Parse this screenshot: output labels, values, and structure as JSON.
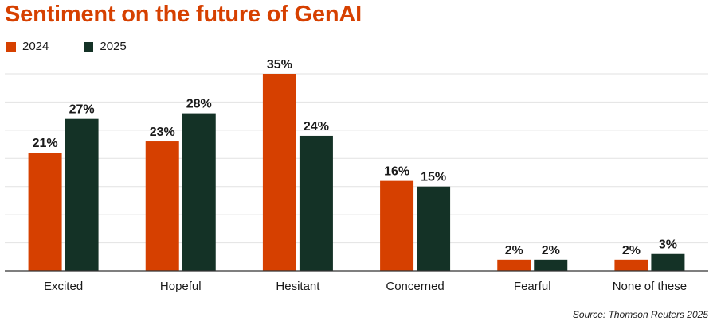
{
  "colors": {
    "title": "#d64000",
    "series_2024": "#d64000",
    "series_2025": "#143226",
    "grid": "#e2e2e2",
    "axis": "#333333"
  },
  "chart_data": {
    "type": "bar",
    "title": "Sentiment on the future of GenAI",
    "categories": [
      "Excited",
      "Hopeful",
      "Hesitant",
      "Concerned",
      "Fearful",
      "None of these"
    ],
    "series": [
      {
        "name": "2024",
        "values": [
          21,
          23,
          35,
          16,
          2,
          2
        ],
        "labels": [
          "21%",
          "23%",
          "35%",
          "16%",
          "2%",
          "2%"
        ]
      },
      {
        "name": "2025",
        "values": [
          27,
          28,
          24,
          15,
          2,
          3
        ],
        "labels": [
          "27%",
          "28%",
          "24%",
          "15%",
          "2%",
          "3%"
        ]
      }
    ],
    "ylim": [
      0,
      35
    ],
    "grid": true,
    "legend_position": "top-left",
    "xlabel": "",
    "ylabel": "",
    "source": "Source: Thomson Reuters 2025"
  }
}
